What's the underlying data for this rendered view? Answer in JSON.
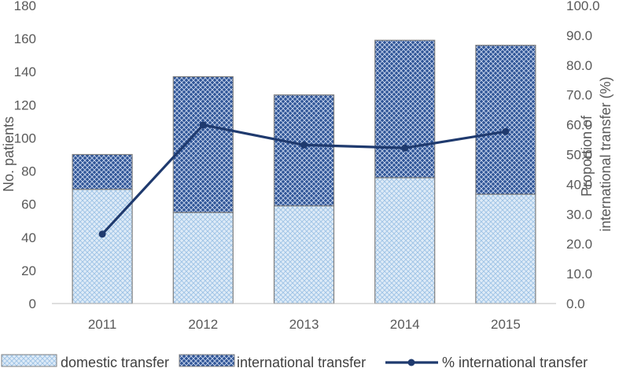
{
  "chart_data": {
    "type": "bar",
    "categories": [
      "2011",
      "2012",
      "2013",
      "2014",
      "2015"
    ],
    "series": [
      {
        "name": "domestic transfer",
        "type": "bar",
        "stack": "patients",
        "axis": "left",
        "values": [
          69,
          55,
          59,
          76,
          66
        ],
        "color": "#bdd7ee"
      },
      {
        "name": "international transfer",
        "type": "bar",
        "stack": "patients",
        "axis": "left",
        "values": [
          21,
          82,
          67,
          83,
          90
        ],
        "color": "#2f5597"
      },
      {
        "name": "% international transfer",
        "type": "line",
        "axis": "right",
        "values": [
          23.3,
          59.9,
          53.2,
          52.2,
          57.7
        ],
        "color": "#1f3a6e"
      }
    ],
    "ylabel": "No. patients",
    "ylabel_right": [
      "Proportion of",
      "international transfer (%)"
    ],
    "ylim": [
      0,
      180
    ],
    "ylim_right": [
      0,
      100
    ],
    "yticks": [
      "0",
      "20",
      "40",
      "60",
      "80",
      "100",
      "120",
      "140",
      "160",
      "180"
    ],
    "yticks_right": [
      "0.0",
      "10.0",
      "20.0",
      "30.0",
      "40.0",
      "50.0",
      "60.0",
      "70.0",
      "80.0",
      "90.0",
      "100.0"
    ],
    "grid": false,
    "legend_position": "bottom"
  }
}
